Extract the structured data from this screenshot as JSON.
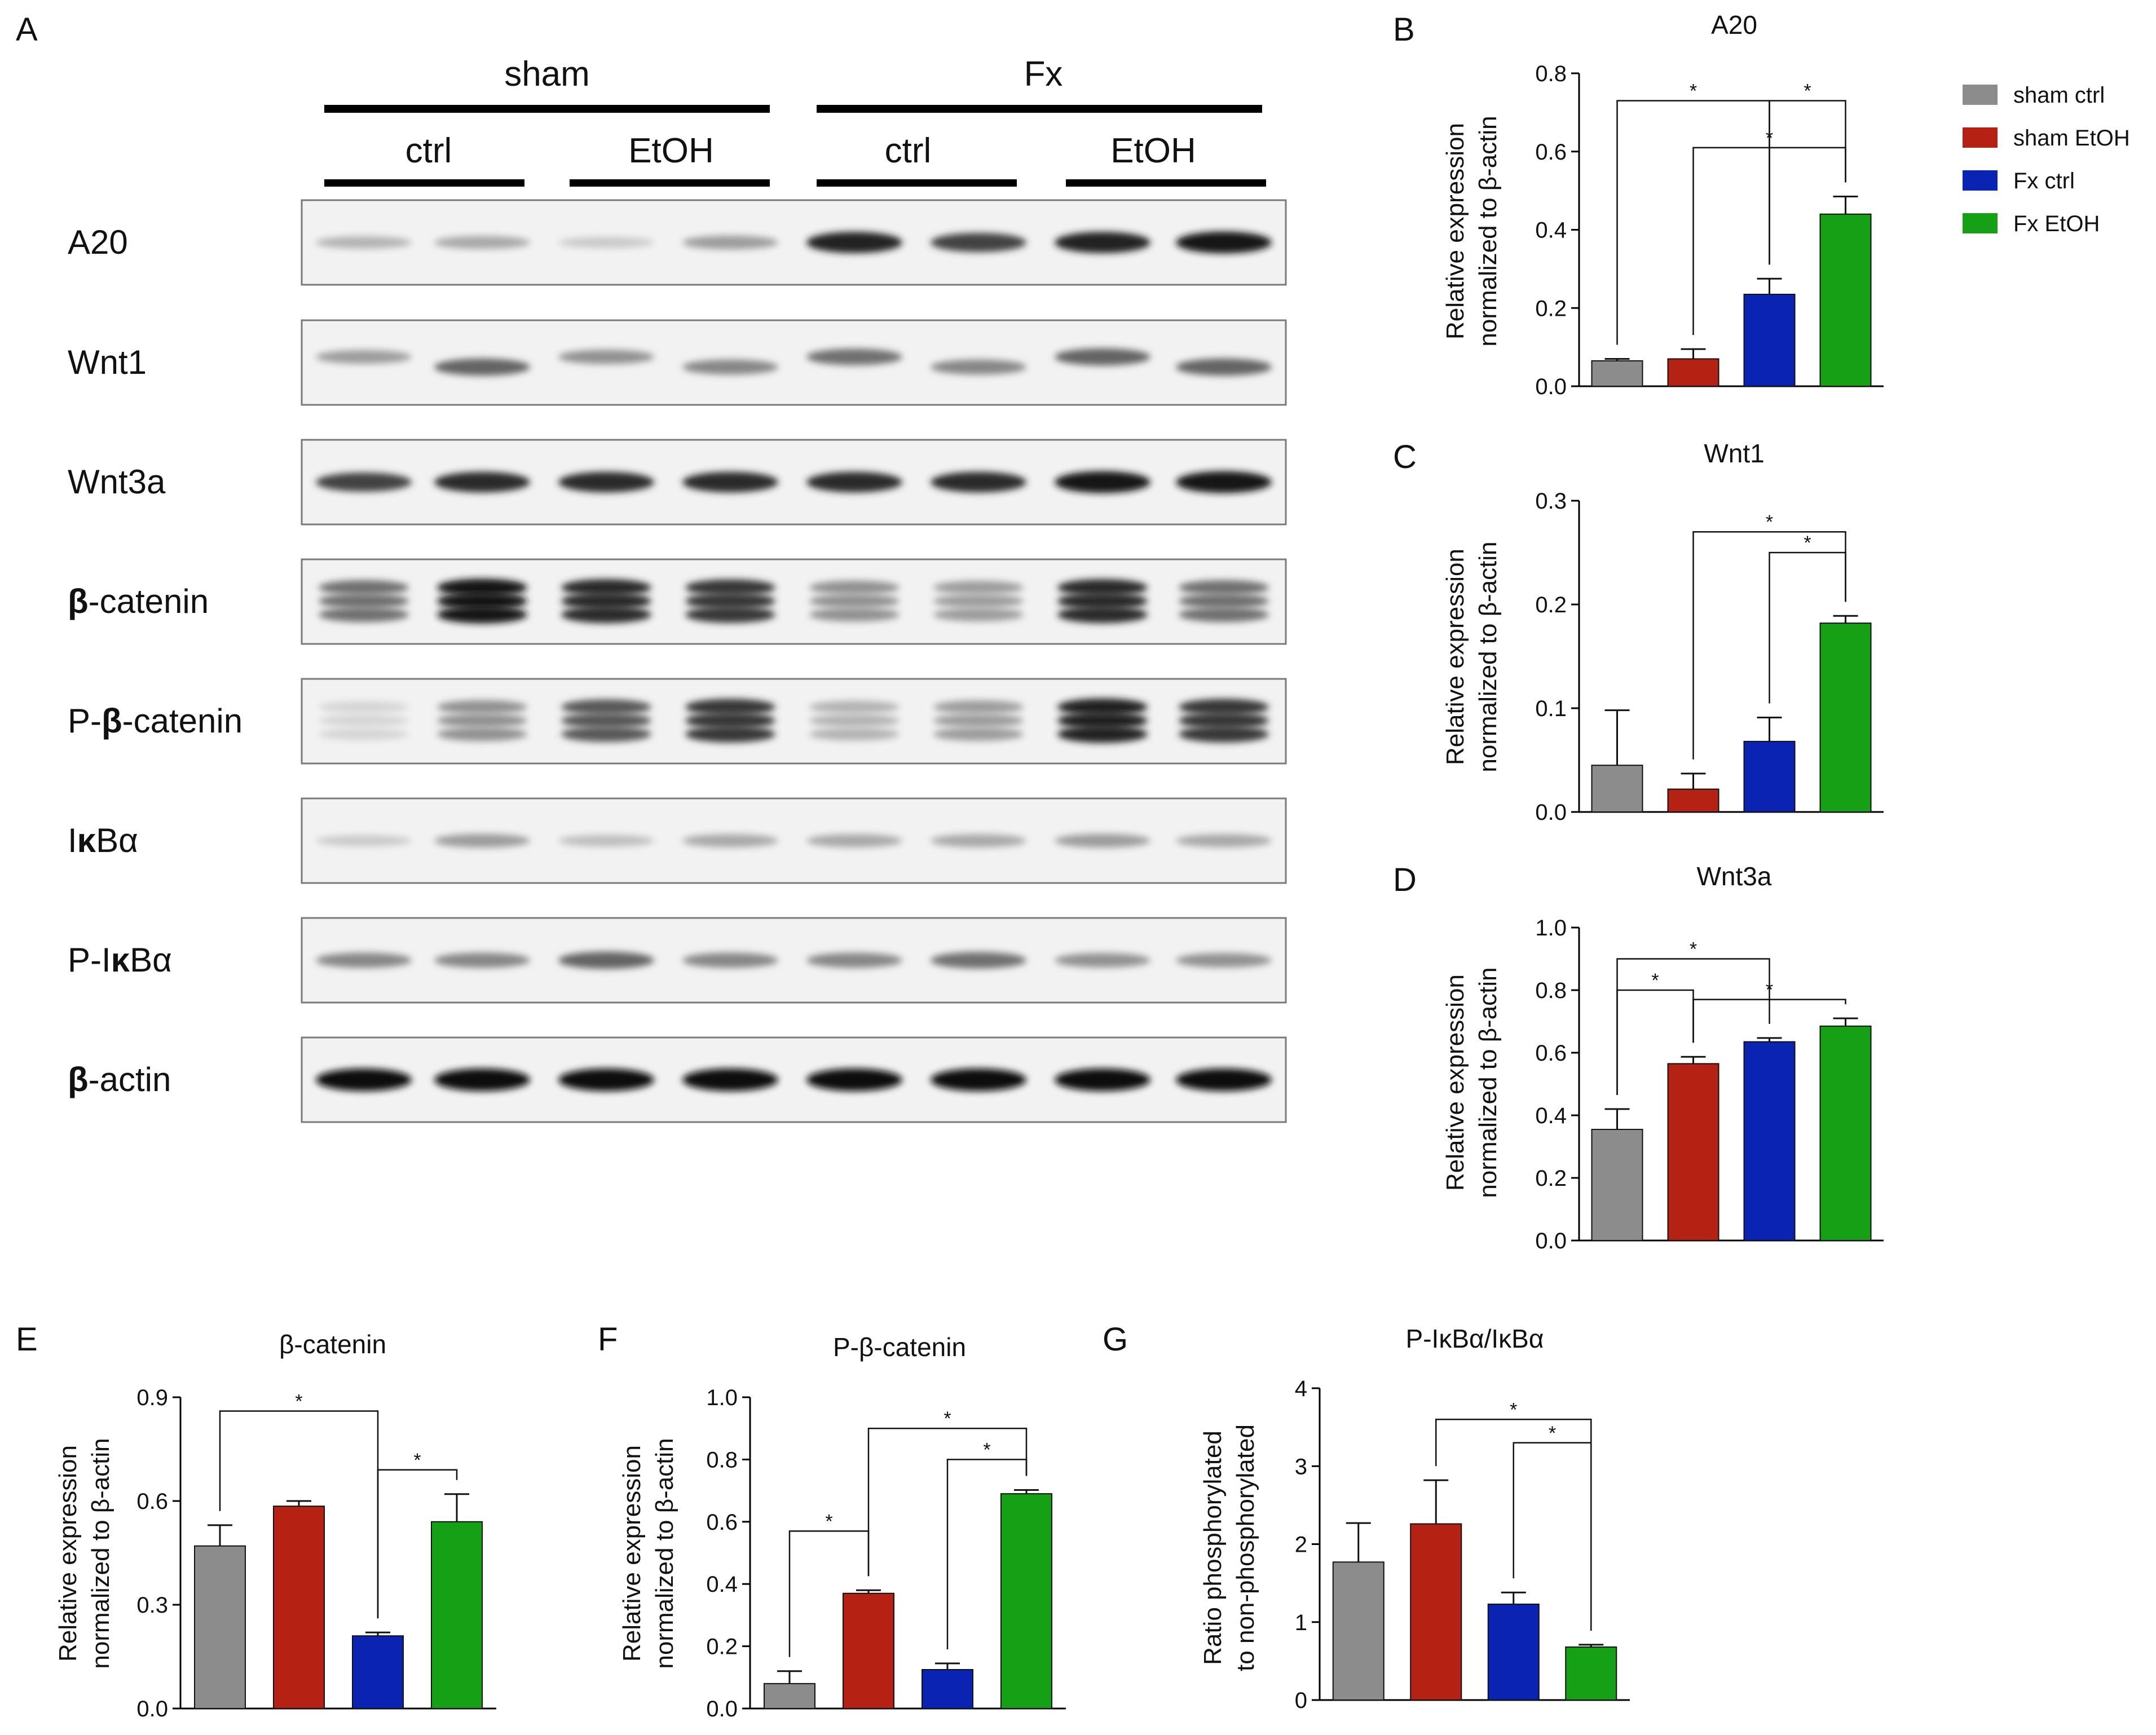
{
  "blot": {
    "panel": "A",
    "groups": [
      "sham",
      "Fx"
    ],
    "subgroups": [
      "ctrl",
      "EtOH",
      "ctrl",
      "EtOH"
    ],
    "rows": [
      {
        "prefix": "",
        "bold": "",
        "suffix": "A20"
      },
      {
        "prefix": "",
        "bold": "",
        "suffix": "Wnt1"
      },
      {
        "prefix": "",
        "bold": "",
        "suffix": "Wnt3a"
      },
      {
        "prefix": "",
        "bold": "β",
        "suffix": "-catenin"
      },
      {
        "prefix": "P-",
        "bold": "β",
        "suffix": "-catenin"
      },
      {
        "prefix": "I",
        "bold": "κ",
        "suffix": "Bα"
      },
      {
        "prefix": "P-I",
        "bold": "κ",
        "suffix": "Bα"
      },
      {
        "prefix": "",
        "bold": "β",
        "suffix": "-actin"
      }
    ]
  },
  "legend": {
    "items": [
      {
        "label": "sham ctrl",
        "color": "#8c8c8c"
      },
      {
        "label": "sham EtOH",
        "color": "#b52113"
      },
      {
        "label": "Fx ctrl",
        "color": "#0a23b3"
      },
      {
        "label": "Fx EtOH",
        "color": "#15a015"
      }
    ]
  },
  "chart_data": [
    {
      "panel": "B",
      "type": "bar",
      "title": "A20",
      "ylabel": [
        "Relative expression",
        "normalized to β-actin"
      ],
      "ylim": [
        0,
        0.8
      ],
      "yticks": [
        "0.0",
        "0.2",
        "0.4",
        "0.6",
        "0.8"
      ],
      "categories": [
        "sham ctrl",
        "sham EtOH",
        "Fx ctrl",
        "Fx EtOH"
      ],
      "values": [
        0.065,
        0.07,
        0.235,
        0.44
      ],
      "errors": [
        0.005,
        0.025,
        0.04,
        0.045
      ],
      "significance": [
        {
          "from": 0,
          "to": 2,
          "y": 0.73,
          "label": "*"
        },
        {
          "from": 2,
          "to": 3,
          "y": 0.73,
          "label": "*"
        },
        {
          "from": 1,
          "to": 3,
          "y": 0.61,
          "label": "*"
        }
      ]
    },
    {
      "panel": "C",
      "type": "bar",
      "title": "Wnt1",
      "ylabel": [
        "Relative expression",
        "normalized to β-actin"
      ],
      "ylim": [
        0,
        0.3
      ],
      "yticks": [
        "0.0",
        "0.1",
        "0.2",
        "0.3"
      ],
      "categories": [
        "sham ctrl",
        "sham EtOH",
        "Fx ctrl",
        "Fx EtOH"
      ],
      "values": [
        0.045,
        0.022,
        0.068,
        0.182
      ],
      "errors": [
        0.053,
        0.015,
        0.023,
        0.007
      ],
      "significance": [
        {
          "from": 1,
          "to": 3,
          "y": 0.27,
          "label": "*"
        },
        {
          "from": 2,
          "to": 3,
          "y": 0.25,
          "label": "*"
        }
      ]
    },
    {
      "panel": "D",
      "type": "bar",
      "title": "Wnt3a",
      "ylabel": [
        "Relative expression",
        "normalized to β-actin"
      ],
      "ylim": [
        0,
        1.0
      ],
      "yticks": [
        "0.0",
        "0.2",
        "0.4",
        "0.6",
        "0.8",
        "1.0"
      ],
      "categories": [
        "sham ctrl",
        "sham EtOH",
        "Fx ctrl",
        "Fx EtOH"
      ],
      "values": [
        0.355,
        0.565,
        0.635,
        0.685
      ],
      "errors": [
        0.065,
        0.022,
        0.012,
        0.025
      ],
      "significance": [
        {
          "from": 0,
          "to": 2,
          "y": 0.9,
          "label": "*"
        },
        {
          "from": 0,
          "to": 1,
          "y": 0.8,
          "label": "*"
        },
        {
          "from": 1,
          "to": 3,
          "y": 0.77,
          "label": "*"
        }
      ]
    },
    {
      "panel": "E",
      "type": "bar",
      "title": "β-catenin",
      "ylabel": [
        "Relative expression",
        "normalized to β-actin"
      ],
      "ylim": [
        0,
        0.9
      ],
      "yticks": [
        "0.0",
        "0.3",
        "0.6",
        "0.9"
      ],
      "categories": [
        "sham ctrl",
        "sham EtOH",
        "Fx ctrl",
        "Fx EtOH"
      ],
      "values": [
        0.47,
        0.585,
        0.21,
        0.54
      ],
      "errors": [
        0.06,
        0.015,
        0.01,
        0.08
      ],
      "significance": [
        {
          "from": 0,
          "to": 2,
          "y": 0.86,
          "label": "*"
        },
        {
          "from": 2,
          "to": 3,
          "y": 0.69,
          "label": "*"
        }
      ]
    },
    {
      "panel": "F",
      "type": "bar",
      "title": "P-β-catenin",
      "ylabel": [
        "Relative expression",
        "normalized to β-actin"
      ],
      "ylim": [
        0,
        1.0
      ],
      "yticks": [
        "0.0",
        "0.2",
        "0.4",
        "0.6",
        "0.8",
        "1.0"
      ],
      "categories": [
        "sham ctrl",
        "sham EtOH",
        "Fx ctrl",
        "Fx EtOH"
      ],
      "values": [
        0.08,
        0.37,
        0.125,
        0.69
      ],
      "errors": [
        0.04,
        0.01,
        0.02,
        0.012
      ],
      "significance": [
        {
          "from": 0,
          "to": 1,
          "y": 0.57,
          "label": "*"
        },
        {
          "from": 1,
          "to": 3,
          "y": 0.9,
          "label": "*"
        },
        {
          "from": 2,
          "to": 3,
          "y": 0.8,
          "label": "*"
        }
      ]
    },
    {
      "panel": "G",
      "type": "bar",
      "title": "P-IκBα/IκBα",
      "ylabel": [
        "Ratio phosphorylated",
        "to non-phosphorylated"
      ],
      "ylim": [
        0,
        4
      ],
      "yticks": [
        "0",
        "1",
        "2",
        "3",
        "4"
      ],
      "categories": [
        "sham ctrl",
        "sham EtOH",
        "Fx ctrl",
        "Fx EtOH"
      ],
      "values": [
        1.77,
        2.26,
        1.23,
        0.68
      ],
      "errors": [
        0.5,
        0.56,
        0.15,
        0.03
      ],
      "significance": [
        {
          "from": 1,
          "to": 3,
          "y": 3.6,
          "label": "*"
        },
        {
          "from": 2,
          "to": 3,
          "y": 3.3,
          "label": "*"
        }
      ]
    }
  ]
}
